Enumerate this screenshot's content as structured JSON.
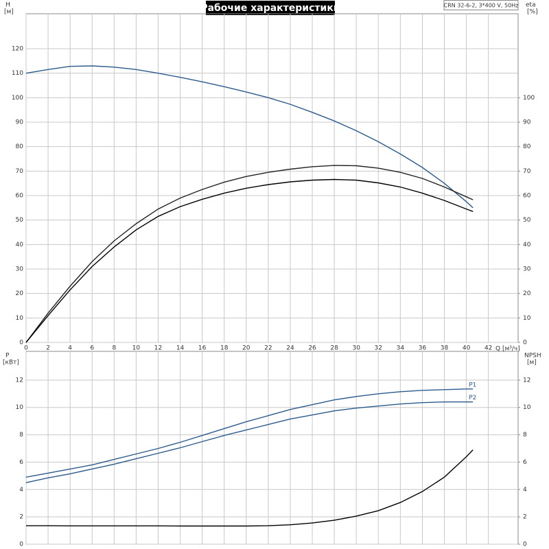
{
  "chart_data": [
    {
      "type": "line",
      "title": "Рабочие характеристики",
      "subtitle": "CRN 32-6-2, 3*400 V, 50Hz",
      "x_label": "Q [м³/ч]",
      "y_label": "H",
      "y_unit": "[м]",
      "y2_label": "eta",
      "y2_unit": "[%]",
      "x": [
        0,
        2,
        4,
        6,
        8,
        10,
        12,
        14,
        16,
        18,
        20,
        22,
        24,
        26,
        28,
        30,
        32,
        34,
        36,
        38,
        40,
        40.6
      ],
      "xlim": [
        0,
        44.7
      ],
      "xticks": [
        0,
        2,
        4,
        6,
        8,
        10,
        12,
        14,
        16,
        18,
        20,
        22,
        24,
        26,
        28,
        30,
        32,
        34,
        36,
        38,
        40,
        42
      ],
      "ylim": [
        0,
        134.3
      ],
      "yticks": [
        0,
        10,
        20,
        30,
        40,
        50,
        60,
        70,
        80,
        90,
        100,
        110,
        120
      ],
      "y2lim": [
        0,
        134.3
      ],
      "y2ticks": [
        0,
        10,
        20,
        30,
        40,
        50,
        60,
        70,
        80,
        90,
        100
      ],
      "grid": true,
      "series": [
        {
          "color": "#2a5a8c",
          "axis": "y",
          "values": [
            110,
            111.5,
            112.8,
            113,
            112.5,
            111.5,
            110,
            108.3,
            106.5,
            104.5,
            102.3,
            100,
            97.3,
            94,
            90.5,
            86.5,
            82,
            77,
            71.5,
            65,
            57.5,
            55
          ]
        },
        {
          "color": "#222222",
          "axis": "y2",
          "values": [
            0,
            12,
            23,
            33,
            41.5,
            48.5,
            54.5,
            59,
            62.5,
            65.5,
            67.8,
            69.5,
            70.8,
            71.8,
            72.3,
            72.2,
            71.2,
            69.5,
            67,
            63.5,
            59.5,
            58.3
          ]
        },
        {
          "color": "#000000",
          "axis": "y2",
          "values": [
            0,
            11,
            21.5,
            31,
            39,
            46,
            51.5,
            55.5,
            58.5,
            61,
            63,
            64.5,
            65.6,
            66.3,
            66.6,
            66.3,
            65.2,
            63.5,
            61,
            58,
            54.5,
            53.5
          ]
        }
      ]
    },
    {
      "type": "line",
      "y_label": "P",
      "y_unit": "[кВт]",
      "y2_label": "NPSH",
      "y2_unit": "[м]",
      "x": [
        0,
        2,
        4,
        6,
        8,
        10,
        12,
        14,
        16,
        18,
        20,
        22,
        24,
        26,
        28,
        30,
        32,
        34,
        36,
        38,
        40,
        40.6
      ],
      "xlim": [
        0,
        44.7
      ],
      "ylim": [
        0,
        14.1
      ],
      "yticks": [
        0,
        2,
        4,
        6,
        8,
        10,
        12
      ],
      "y2lim": [
        0,
        14.1
      ],
      "y2ticks": [
        0,
        2,
        4,
        6,
        8,
        10,
        12
      ],
      "grid": true,
      "series": [
        {
          "name": "P1",
          "color": "#2a5a8c",
          "axis": "y",
          "values": [
            4.9,
            5.2,
            5.5,
            5.8,
            6.2,
            6.6,
            7.0,
            7.45,
            7.95,
            8.45,
            8.95,
            9.4,
            9.85,
            10.2,
            10.55,
            10.8,
            11.0,
            11.15,
            11.25,
            11.3,
            11.35,
            11.35
          ]
        },
        {
          "name": "P2",
          "color": "#2a5a8c",
          "axis": "y",
          "values": [
            4.5,
            4.85,
            5.15,
            5.5,
            5.85,
            6.25,
            6.65,
            7.05,
            7.5,
            7.95,
            8.35,
            8.75,
            9.15,
            9.45,
            9.75,
            9.95,
            10.1,
            10.25,
            10.35,
            10.4,
            10.4,
            10.4
          ]
        },
        {
          "color": "#000000",
          "axis": "y2",
          "values": [
            1.35,
            1.35,
            1.34,
            1.34,
            1.34,
            1.34,
            1.34,
            1.33,
            1.33,
            1.33,
            1.33,
            1.35,
            1.42,
            1.55,
            1.75,
            2.05,
            2.45,
            3.05,
            3.85,
            4.9,
            6.4,
            6.9
          ]
        }
      ]
    }
  ]
}
